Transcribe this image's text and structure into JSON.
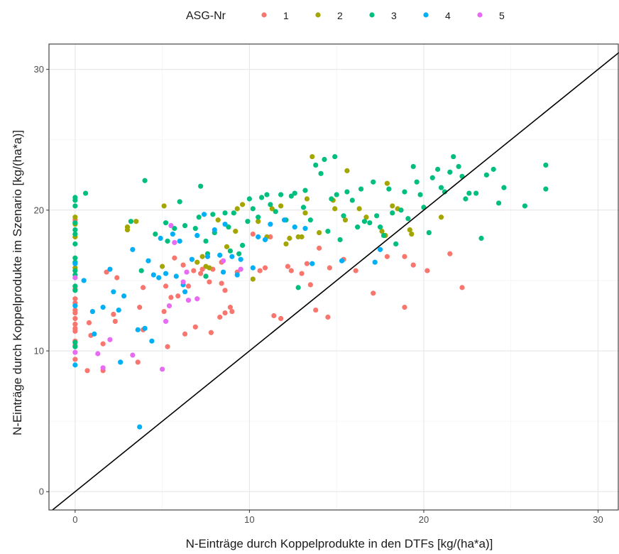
{
  "chart_data": {
    "type": "scatter",
    "title": "",
    "xlabel": "N-Einträge durch Koppelprodukte in den DTFs [kg/(ha*a)]",
    "ylabel": "N-Einträge durch Koppelprodukte im Szenario [kg/(ha*a)]",
    "xlim": [
      -1.5,
      31.2
    ],
    "ylim": [
      -1.3,
      31.8
    ],
    "x_ticks": [
      0,
      10,
      20,
      30
    ],
    "y_ticks": [
      0,
      10,
      20,
      30
    ],
    "grid": true,
    "reference_line": "y = x",
    "legend": {
      "title": "ASG-Nr",
      "position": "top"
    },
    "series": [
      {
        "name": "1",
        "color": "#F8766D",
        "points": [
          [
            0,
            9.4
          ],
          [
            0,
            10.4
          ],
          [
            0,
            10.7
          ],
          [
            0,
            11.4
          ],
          [
            0,
            11.6
          ],
          [
            0,
            11.9
          ],
          [
            0,
            12.3
          ],
          [
            0,
            12.7
          ],
          [
            0,
            12.9
          ],
          [
            0,
            13.4
          ],
          [
            0,
            13.7
          ],
          [
            0,
            14.4
          ],
          [
            0,
            19.3
          ],
          [
            0.7,
            8.6
          ],
          [
            0.8,
            12.0
          ],
          [
            0.9,
            11.1
          ],
          [
            1.6,
            8.6
          ],
          [
            1.6,
            10.5
          ],
          [
            1.8,
            15.6
          ],
          [
            2.2,
            12.6
          ],
          [
            2.3,
            12.1
          ],
          [
            2.4,
            15.2
          ],
          [
            3.6,
            9.2
          ],
          [
            3.7,
            13.1
          ],
          [
            3.9,
            14.5
          ],
          [
            3.9,
            11.5
          ],
          [
            5.1,
            12.8
          ],
          [
            5.2,
            14.6
          ],
          [
            5.3,
            10.3
          ],
          [
            5.5,
            13.8
          ],
          [
            5.7,
            16.6
          ],
          [
            5.9,
            13.9
          ],
          [
            6.2,
            16.1
          ],
          [
            6.3,
            11.2
          ],
          [
            6.5,
            14.6
          ],
          [
            6.8,
            15.7
          ],
          [
            6.9,
            11.7
          ],
          [
            7.2,
            15.5
          ],
          [
            7.3,
            15.8
          ],
          [
            7.5,
            15.3
          ],
          [
            7.7,
            14.9
          ],
          [
            7.8,
            11.3
          ],
          [
            7.9,
            15.8
          ],
          [
            8.3,
            12.4
          ],
          [
            8.4,
            14.8
          ],
          [
            8.4,
            16.3
          ],
          [
            8.6,
            12.7
          ],
          [
            8.6,
            14.3
          ],
          [
            8.9,
            13.1
          ],
          [
            9.0,
            12.8
          ],
          [
            9.3,
            15.6
          ],
          [
            10.2,
            18.3
          ],
          [
            10.6,
            15.7
          ],
          [
            10.9,
            15.9
          ],
          [
            11.2,
            18.1
          ],
          [
            11.4,
            12.5
          ],
          [
            11.8,
            12.3
          ],
          [
            12.2,
            16.0
          ],
          [
            12.4,
            15.7
          ],
          [
            13.0,
            15.5
          ],
          [
            13.3,
            16.2
          ],
          [
            13.5,
            14.7
          ],
          [
            13.8,
            12.9
          ],
          [
            14.0,
            17.3
          ],
          [
            14.5,
            12.4
          ],
          [
            14.6,
            15.9
          ],
          [
            15.4,
            16.5
          ],
          [
            16.1,
            15.7
          ],
          [
            17.1,
            14.1
          ],
          [
            17.9,
            16.7
          ],
          [
            18.9,
            16.7
          ],
          [
            18.9,
            13.1
          ],
          [
            19.4,
            16.1
          ],
          [
            20.2,
            15.7
          ],
          [
            21.5,
            16.9
          ],
          [
            22.2,
            14.5
          ]
        ]
      },
      {
        "name": "2",
        "color": "#A3A500",
        "points": [
          [
            0,
            18.1
          ],
          [
            0,
            19.0
          ],
          [
            0,
            19.5
          ],
          [
            0,
            15.9
          ],
          [
            3.0,
            18.6
          ],
          [
            3.0,
            18.8
          ],
          [
            3.5,
            19.2
          ],
          [
            5.0,
            16.0
          ],
          [
            5.1,
            20.3
          ],
          [
            7.0,
            16.3
          ],
          [
            7.3,
            16.7
          ],
          [
            7.5,
            16.0
          ],
          [
            7.7,
            15.9
          ],
          [
            8.2,
            19.3
          ],
          [
            8.7,
            17.4
          ],
          [
            9.2,
            18.5
          ],
          [
            9.3,
            20.1
          ],
          [
            9.6,
            20.4
          ],
          [
            10.2,
            15.1
          ],
          [
            10.5,
            19.2
          ],
          [
            11.0,
            18.1
          ],
          [
            11.3,
            20.1
          ],
          [
            11.8,
            20.3
          ],
          [
            12.1,
            17.6
          ],
          [
            12.3,
            18.0
          ],
          [
            12.8,
            18.1
          ],
          [
            13.0,
            18.1
          ],
          [
            13.2,
            19.8
          ],
          [
            13.3,
            20.8
          ],
          [
            13.6,
            23.8
          ],
          [
            14.0,
            18.4
          ],
          [
            14.8,
            20.7
          ],
          [
            14.9,
            20.1
          ],
          [
            15.5,
            19.3
          ],
          [
            15.6,
            22.8
          ],
          [
            16.3,
            20.1
          ],
          [
            16.7,
            19.5
          ],
          [
            17.6,
            18.5
          ],
          [
            17.8,
            18.2
          ],
          [
            17.9,
            21.9
          ],
          [
            18.2,
            20.3
          ],
          [
            18.5,
            20.1
          ],
          [
            19.2,
            18.6
          ],
          [
            19.3,
            18.3
          ],
          [
            21.0,
            19.5
          ]
        ]
      },
      {
        "name": "3",
        "color": "#00BF7D",
        "points": [
          [
            0,
            20.9
          ],
          [
            0,
            20.7
          ],
          [
            0,
            20.3
          ],
          [
            0,
            19.1
          ],
          [
            0,
            18.6
          ],
          [
            0,
            18.3
          ],
          [
            0,
            17.6
          ],
          [
            0,
            16.6
          ],
          [
            0,
            16.3
          ],
          [
            0,
            15.7
          ],
          [
            0,
            15.4
          ],
          [
            0,
            14.6
          ],
          [
            0,
            14.3
          ],
          [
            0,
            10.6
          ],
          [
            0,
            10.3
          ],
          [
            0.6,
            21.2
          ],
          [
            3.2,
            19.2
          ],
          [
            3.8,
            15.7
          ],
          [
            4.0,
            22.1
          ],
          [
            4.6,
            18.3
          ],
          [
            5.2,
            19.1
          ],
          [
            5.3,
            17.8
          ],
          [
            5.7,
            18.7
          ],
          [
            6.0,
            20.6
          ],
          [
            6.3,
            18.9
          ],
          [
            6.9,
            18.7
          ],
          [
            7.1,
            19.5
          ],
          [
            7.2,
            21.7
          ],
          [
            7.5,
            17.8
          ],
          [
            7.5,
            15.3
          ],
          [
            7.6,
            16.9
          ],
          [
            7.9,
            19.7
          ],
          [
            8.0,
            18.4
          ],
          [
            8.6,
            19.8
          ],
          [
            8.8,
            18.8
          ],
          [
            8.9,
            17.1
          ],
          [
            9.1,
            19.8
          ],
          [
            9.4,
            16.9
          ],
          [
            9.6,
            17.5
          ],
          [
            9.9,
            19.2
          ],
          [
            10.0,
            20.8
          ],
          [
            10.2,
            20.1
          ],
          [
            10.5,
            19.5
          ],
          [
            10.7,
            20.9
          ],
          [
            11.0,
            21.1
          ],
          [
            11.2,
            20.4
          ],
          [
            11.5,
            19.9
          ],
          [
            11.8,
            21.1
          ],
          [
            12.1,
            19.3
          ],
          [
            12.4,
            21.0
          ],
          [
            12.6,
            21.2
          ],
          [
            12.8,
            14.5
          ],
          [
            13.1,
            20.2
          ],
          [
            13.2,
            21.4
          ],
          [
            13.5,
            19.3
          ],
          [
            13.8,
            23.2
          ],
          [
            14.1,
            22.6
          ],
          [
            14.3,
            23.6
          ],
          [
            14.5,
            18.5
          ],
          [
            14.7,
            20.8
          ],
          [
            14.9,
            23.8
          ],
          [
            15.0,
            21.1
          ],
          [
            15.2,
            17.9
          ],
          [
            15.4,
            19.6
          ],
          [
            15.6,
            21.3
          ],
          [
            15.9,
            20.7
          ],
          [
            16.2,
            18.8
          ],
          [
            16.4,
            21.5
          ],
          [
            16.6,
            19.2
          ],
          [
            16.9,
            19.1
          ],
          [
            17.1,
            22.0
          ],
          [
            17.3,
            19.6
          ],
          [
            17.5,
            18.8
          ],
          [
            17.7,
            18.2
          ],
          [
            18.0,
            21.5
          ],
          [
            18.2,
            19.8
          ],
          [
            18.4,
            17.6
          ],
          [
            18.7,
            20.0
          ],
          [
            18.9,
            21.3
          ],
          [
            19.1,
            19.4
          ],
          [
            19.4,
            23.1
          ],
          [
            19.6,
            22.0
          ],
          [
            19.8,
            21.1
          ],
          [
            20.0,
            20.2
          ],
          [
            20.3,
            18.4
          ],
          [
            20.5,
            22.3
          ],
          [
            20.8,
            22.9
          ],
          [
            21.0,
            21.6
          ],
          [
            21.2,
            21.3
          ],
          [
            21.5,
            22.7
          ],
          [
            21.7,
            23.8
          ],
          [
            22.0,
            23.1
          ],
          [
            22.2,
            22.4
          ],
          [
            22.4,
            20.8
          ],
          [
            22.6,
            21.2
          ],
          [
            23.0,
            21.2
          ],
          [
            23.3,
            18.0
          ],
          [
            23.6,
            22.5
          ],
          [
            24.0,
            22.9
          ],
          [
            24.3,
            20.5
          ],
          [
            24.6,
            21.6
          ],
          [
            25.8,
            20.3
          ],
          [
            27.0,
            23.2
          ],
          [
            27.0,
            21.5
          ]
        ]
      },
      {
        "name": "4",
        "color": "#00B0F6",
        "points": [
          [
            0,
            9.0
          ],
          [
            0,
            13.2
          ],
          [
            0,
            16.2
          ],
          [
            0.5,
            15.0
          ],
          [
            1.0,
            12.8
          ],
          [
            1.1,
            11.2
          ],
          [
            1.6,
            13.1
          ],
          [
            2.0,
            15.8
          ],
          [
            2.2,
            14.2
          ],
          [
            2.5,
            12.9
          ],
          [
            2.6,
            9.2
          ],
          [
            2.8,
            13.9
          ],
          [
            3.3,
            17.2
          ],
          [
            3.6,
            11.5
          ],
          [
            3.7,
            4.6
          ],
          [
            4.0,
            11.6
          ],
          [
            4.2,
            16.4
          ],
          [
            4.4,
            10.7
          ],
          [
            4.5,
            15.4
          ],
          [
            4.8,
            15.2
          ],
          [
            4.9,
            18.0
          ],
          [
            5.2,
            15.5
          ],
          [
            5.6,
            18.3
          ],
          [
            5.8,
            15.3
          ],
          [
            6.0,
            17.8
          ],
          [
            6.2,
            14.7
          ],
          [
            6.3,
            14.2
          ],
          [
            6.7,
            16.5
          ],
          [
            7.0,
            18.2
          ],
          [
            7.4,
            19.7
          ],
          [
            7.6,
            16.7
          ],
          [
            8.0,
            18.6
          ],
          [
            8.3,
            16.8
          ],
          [
            8.5,
            15.6
          ],
          [
            8.6,
            19.0
          ],
          [
            9.0,
            16.7
          ],
          [
            9.3,
            15.4
          ],
          [
            9.5,
            16.5
          ],
          [
            10.2,
            15.9
          ],
          [
            10.5,
            18.1
          ],
          [
            10.9,
            17.9
          ],
          [
            11.2,
            19.0
          ],
          [
            12.0,
            19.3
          ],
          [
            12.6,
            18.8
          ],
          [
            13.2,
            18.7
          ],
          [
            13.6,
            16.2
          ],
          [
            15.3,
            16.4
          ],
          [
            17.2,
            16.3
          ],
          [
            17.5,
            17.2
          ]
        ]
      },
      {
        "name": "5",
        "color": "#E76BF3",
        "points": [
          [
            0,
            9.9
          ],
          [
            0,
            15.2
          ],
          [
            1.3,
            9.8
          ],
          [
            1.6,
            8.8
          ],
          [
            2.0,
            10.8
          ],
          [
            3.3,
            9.7
          ],
          [
            5.0,
            8.7
          ],
          [
            5.2,
            12.1
          ],
          [
            5.4,
            13.2
          ],
          [
            5.5,
            18.9
          ],
          [
            5.7,
            17.7
          ],
          [
            6.2,
            14.9
          ],
          [
            6.4,
            15.6
          ],
          [
            6.5,
            13.6
          ],
          [
            7.0,
            13.7
          ],
          [
            8.5,
            16.4
          ],
          [
            9.5,
            15.8
          ]
        ]
      }
    ]
  }
}
